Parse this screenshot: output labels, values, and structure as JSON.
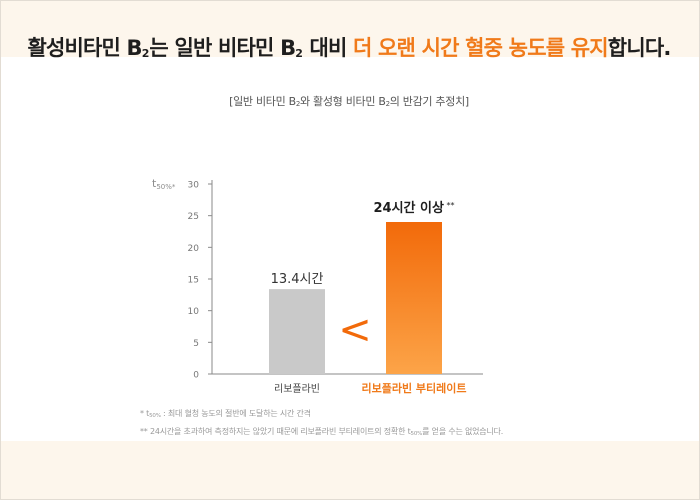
{
  "headline": {
    "part1": "활성비타민 B",
    "sub1": "2",
    "part2": "는 일반 비타민 B",
    "sub2": "2",
    "part3": " 대비 ",
    "highlight": "더 오랜 시간 혈중 농도를 유지",
    "part4": "합니다."
  },
  "subtitle": {
    "part1": "[일반 비타민 B",
    "sub1": "2",
    "part2": "와 활성형 비타민 B",
    "sub2": "2",
    "part3": "의 반감기 추정치]"
  },
  "chart_data": {
    "type": "bar",
    "categories": [
      "리보플라빈",
      "리보플라빈 부티레이트"
    ],
    "values": [
      13.4,
      24
    ],
    "data_labels": [
      "13.4시간",
      "24시간 이상 **"
    ],
    "ylabel": "t50%*",
    "ylim": [
      0,
      30
    ],
    "yticks": [
      0,
      5,
      10,
      15,
      20,
      25,
      30
    ],
    "comparison_symbol": "<",
    "colors": {
      "bar1": "#c9c9c9",
      "bar2_top": "#f26a0a",
      "bar2_bottom": "#fca448",
      "highlight_text": "#f07a1a",
      "axis": "#8a8a8a"
    }
  },
  "footnotes": {
    "note1": {
      "prefix": "* t",
      "sub": "50%",
      "text": " : 최대 혈청 농도의 절반에 도달하는 시간 간격"
    },
    "note2": {
      "prefix": "** 24시간을 초과하여 측정하지는 않았기 때문에 리보플라빈 부티레이트의 정확한 t",
      "sub": "50%",
      "text": "를 얻을 수는 없었습니다."
    }
  }
}
